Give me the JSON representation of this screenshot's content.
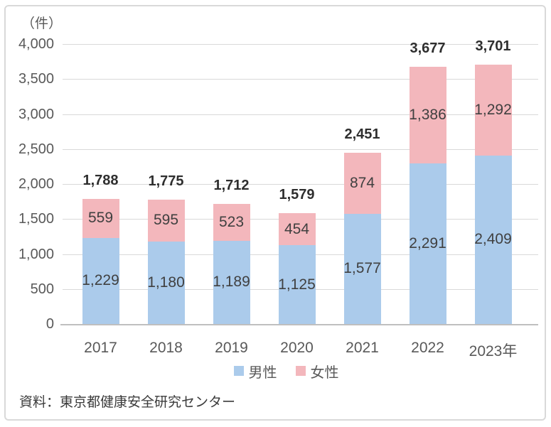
{
  "unit_label": "（件）",
  "source_note": "資料：東京都健康安全研究センター",
  "legend": {
    "items": [
      {
        "label": "男性",
        "color": "#ABCBEB"
      },
      {
        "label": "女性",
        "color": "#F3B7BC"
      }
    ]
  },
  "colors": {
    "male_bar": "#ABCBEB",
    "female_bar": "#F3B7BC",
    "gridline": "#D9D9D9",
    "axis_line": "#BFBFBF",
    "axis_text": "#595959",
    "value_text": "#404040",
    "total_text": "#2E2E2E",
    "frame_border": "#D9D9D9"
  },
  "chart_data": {
    "type": "bar",
    "stacked": true,
    "title": "",
    "ylabel": "（件）",
    "xlabel": "",
    "categories": [
      "2017",
      "2018",
      "2019",
      "2020",
      "2021",
      "2022",
      "2023年"
    ],
    "series": [
      {
        "name": "男性",
        "color": "#ABCBEB",
        "values": [
          1229,
          1180,
          1189,
          1125,
          1577,
          2291,
          2409
        ]
      },
      {
        "name": "女性",
        "color": "#F3B7BC",
        "values": [
          559,
          595,
          523,
          454,
          874,
          1386,
          1292
        ]
      }
    ],
    "totals": [
      1788,
      1775,
      1712,
      1579,
      2451,
      3677,
      3701
    ],
    "ylim": [
      0,
      4000
    ],
    "ytick_step": 500,
    "grid": true,
    "legend_position": "bottom",
    "source": "資料：東京都健康安全研究センター"
  }
}
